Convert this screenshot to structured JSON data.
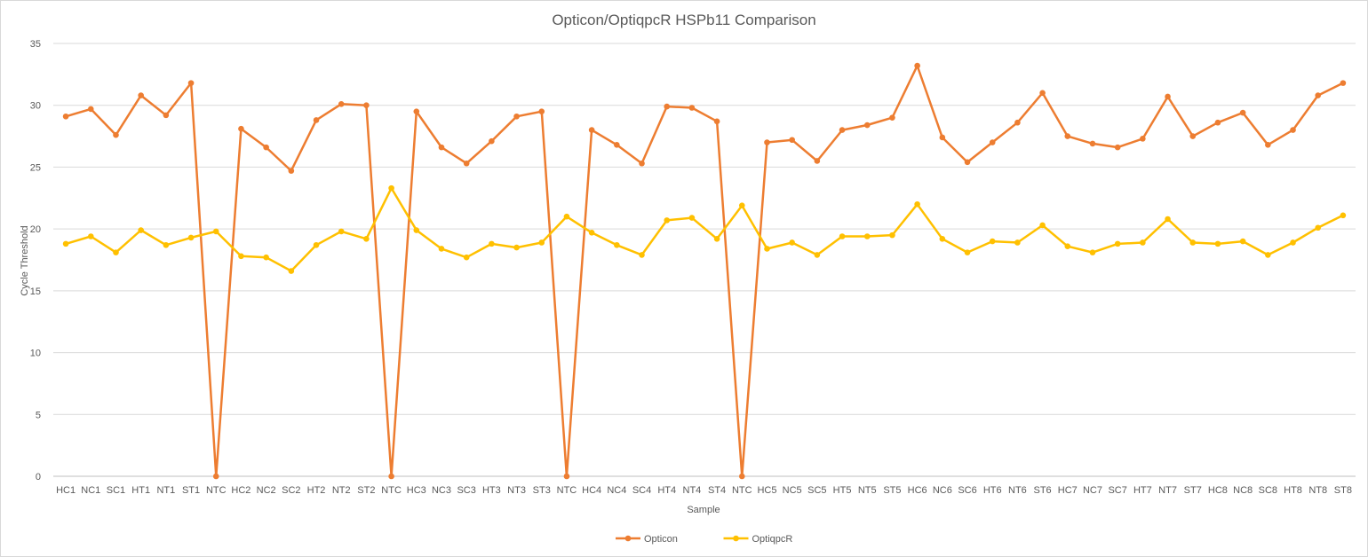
{
  "chart_data": {
    "type": "line",
    "title": "Opticon/OptiqpcR HSPb11 Comparison",
    "xlabel": "Sample",
    "ylabel": "Cycle Threshold",
    "ylim": [
      0,
      35
    ],
    "yticks": [
      0,
      5,
      10,
      15,
      20,
      25,
      30,
      35
    ],
    "grid": true,
    "legend_position": "bottom",
    "categories": [
      "HC1",
      "NC1",
      "SC1",
      "HT1",
      "NT1",
      "ST1",
      "NTC",
      "HC2",
      "NC2",
      "SC2",
      "HT2",
      "NT2",
      "ST2",
      "NTC",
      "HC3",
      "NC3",
      "SC3",
      "HT3",
      "NT3",
      "ST3",
      "NTC",
      "HC4",
      "NC4",
      "SC4",
      "HT4",
      "NT4",
      "ST4",
      "NTC",
      "HC5",
      "NC5",
      "SC5",
      "HT5",
      "NT5",
      "ST5",
      "HC6",
      "NC6",
      "SC6",
      "HT6",
      "NT6",
      "ST6",
      "HC7",
      "NC7",
      "SC7",
      "HT7",
      "NT7",
      "ST7",
      "HC8",
      "NC8",
      "SC8",
      "HT8",
      "NT8",
      "ST8"
    ],
    "series": [
      {
        "name": "Opticon",
        "color": "#ED7D31",
        "values": [
          29.1,
          29.7,
          27.6,
          30.8,
          29.2,
          31.8,
          0,
          28.1,
          26.6,
          24.7,
          28.8,
          30.1,
          30.0,
          0,
          29.5,
          26.6,
          25.3,
          27.1,
          29.1,
          29.5,
          0,
          28.0,
          26.8,
          25.3,
          29.9,
          29.8,
          28.7,
          0,
          27.0,
          27.2,
          25.5,
          28.0,
          28.4,
          29.0,
          33.2,
          27.4,
          25.4,
          27.0,
          28.6,
          31.0,
          27.5,
          26.9,
          26.6,
          27.3,
          30.7,
          27.5,
          28.6,
          29.4,
          26.8,
          28.0,
          30.8,
          31.8
        ]
      },
      {
        "name": "OptiqpcR",
        "color": "#FFC000",
        "values": [
          18.8,
          19.4,
          18.1,
          19.9,
          18.7,
          19.3,
          19.8,
          17.8,
          17.7,
          16.6,
          18.7,
          19.8,
          19.2,
          23.3,
          19.9,
          18.4,
          17.7,
          18.8,
          18.5,
          18.9,
          21.0,
          19.7,
          18.7,
          17.9,
          20.7,
          20.9,
          19.2,
          21.9,
          18.4,
          18.9,
          17.9,
          19.4,
          19.4,
          19.5,
          22.0,
          19.2,
          18.1,
          19.0,
          18.9,
          20.3,
          18.6,
          18.1,
          18.8,
          18.9,
          20.8,
          18.9,
          18.8,
          19.0,
          17.9,
          18.9,
          20.1,
          21.1
        ]
      }
    ]
  }
}
